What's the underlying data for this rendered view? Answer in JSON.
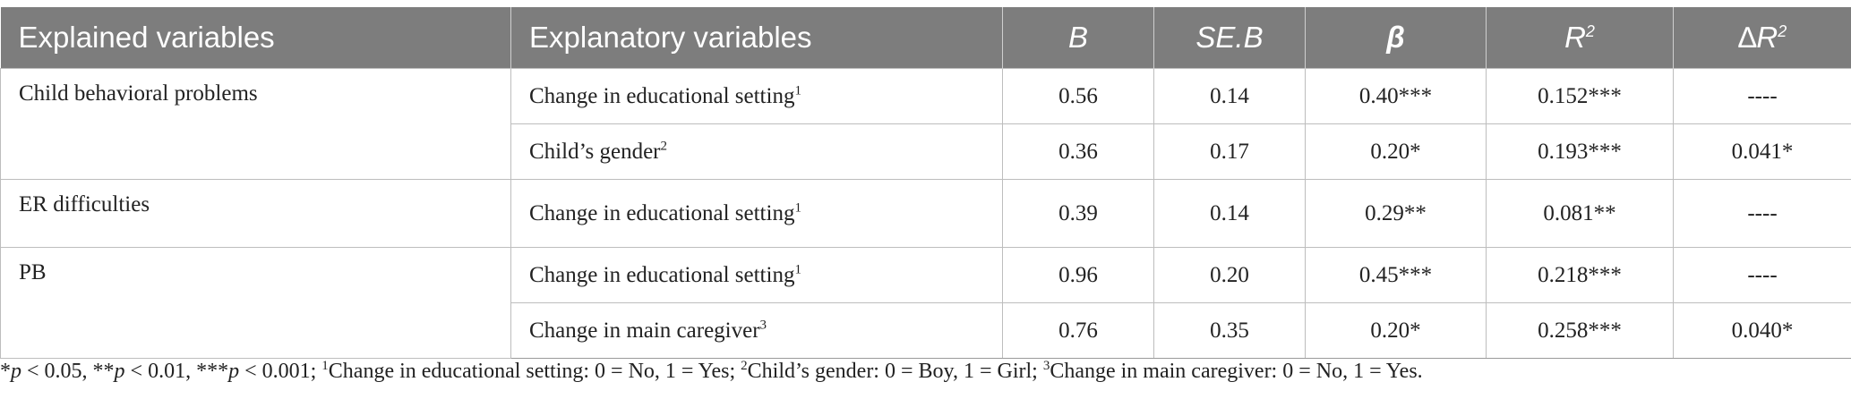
{
  "table": {
    "headers": {
      "explained": "Explained variables",
      "explanatory": "Explanatory variables",
      "b": "B",
      "seb": "SE.B",
      "beta": "β",
      "r2": "R",
      "r2_sup": "2",
      "dr2_delta": "∆",
      "dr2": "R",
      "dr2_sup": "2"
    },
    "groups": [
      {
        "label": "Child behavioral problems",
        "rows": [
          {
            "var": "Change in educational setting",
            "sup": "1",
            "b": "0.56",
            "seb": "0.14",
            "beta": "0.40***",
            "r2": "0.152***",
            "dr2": "----"
          },
          {
            "var": "Child’s gender",
            "sup": "2",
            "b": "0.36",
            "seb": "0.17",
            "beta": "0.20*",
            "r2": "0.193***",
            "dr2": "0.041*"
          }
        ]
      },
      {
        "label": "ER difficulties",
        "rows": [
          {
            "var": "Change in educational setting",
            "sup": "1",
            "b": "0.39",
            "seb": "0.14",
            "beta": "0.29**",
            "r2": "0.081**",
            "dr2": "----"
          }
        ]
      },
      {
        "label": "PB",
        "rows": [
          {
            "var": "Change in educational setting",
            "sup": "1",
            "b": "0.96",
            "seb": "0.20",
            "beta": "0.45***",
            "r2": "0.218***",
            "dr2": "----"
          },
          {
            "var": "Change in main caregiver",
            "sup": "3",
            "b": "0.76",
            "seb": "0.35",
            "beta": "0.20*",
            "r2": "0.258***",
            "dr2": "0.040*"
          }
        ]
      }
    ]
  },
  "footnote": {
    "p1_star": "*",
    "p1_p": "p",
    "p1_rest": " < 0.05, **",
    "p2_p": "p",
    "p2_rest": " < 0.01, ***",
    "p3_p": "p",
    "p3_rest": " < 0.001; ",
    "n1_sup": "1",
    "n1_text": "Change in educational setting: 0 = No, 1 = Yes; ",
    "n2_sup": "2",
    "n2_text": "Child’s gender: 0 = Boy, 1 = Girl; ",
    "n3_sup": "3",
    "n3_text": "Change in main caregiver: 0 = No, 1 = Yes."
  }
}
